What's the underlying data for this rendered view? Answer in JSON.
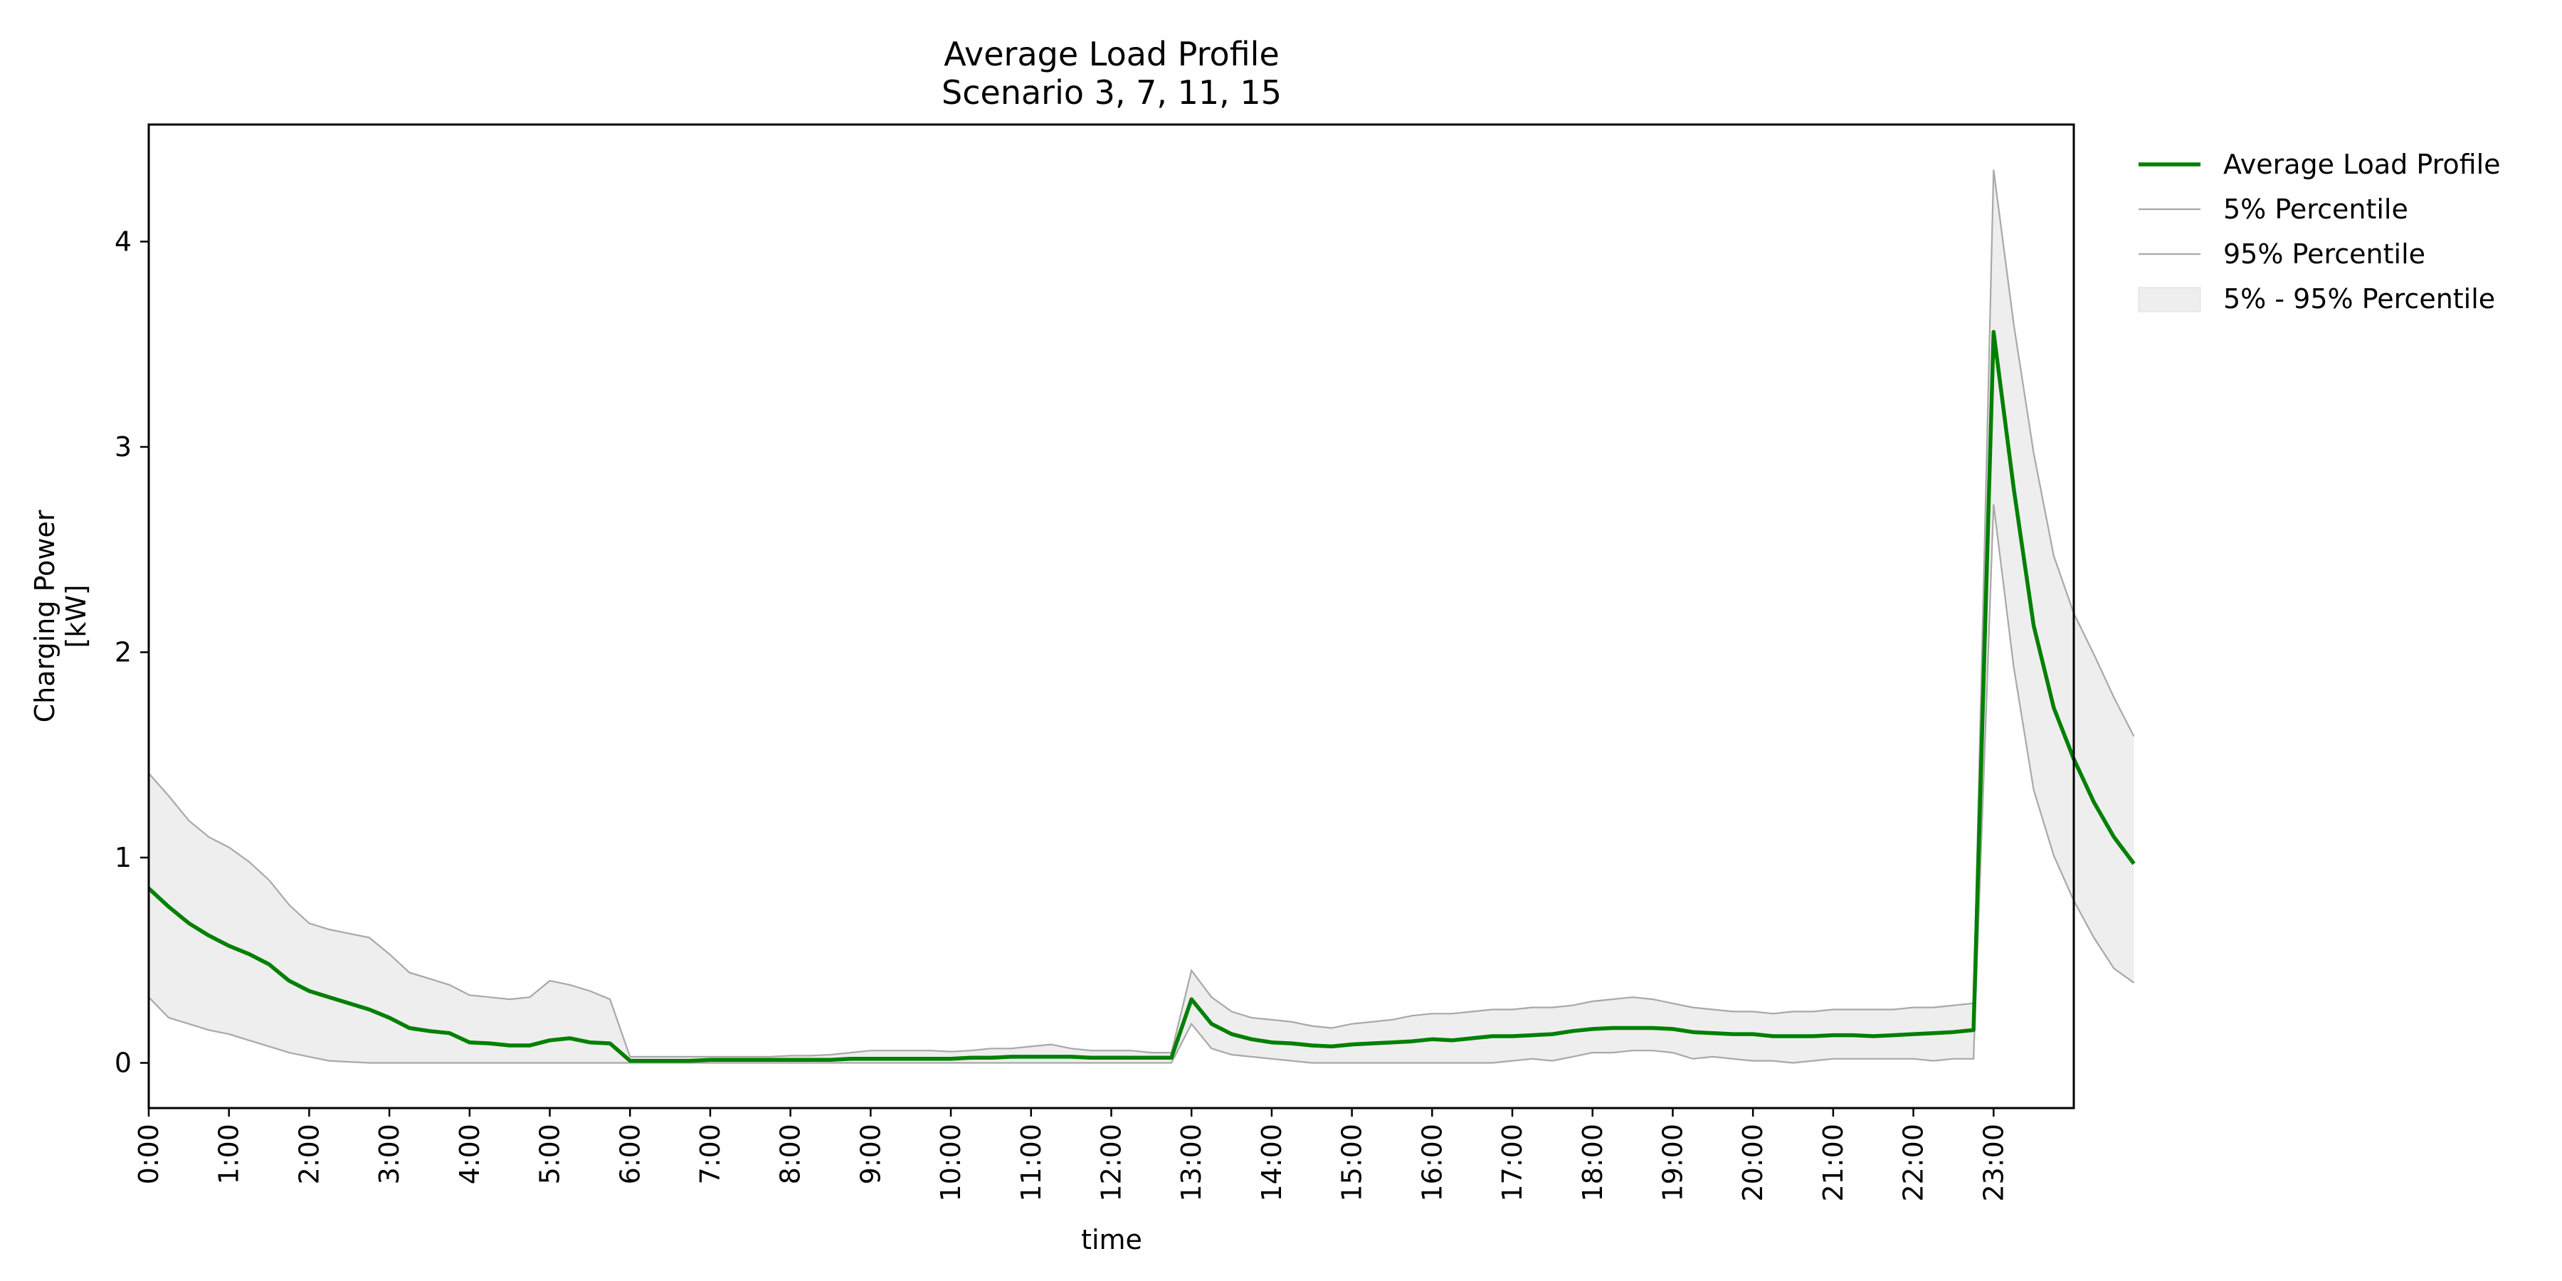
{
  "chart_data": {
    "type": "line",
    "title": "Average Load Profile",
    "subtitle": "Scenario 3, 7, 11, 15",
    "xlabel": "time",
    "ylabel": "Charging Power",
    "ylabel_unit": "[kW]",
    "x_step_hours": 0.25,
    "x_ticks": [
      "0:00",
      "1:00",
      "2:00",
      "3:00",
      "4:00",
      "5:00",
      "6:00",
      "7:00",
      "8:00",
      "9:00",
      "10:00",
      "11:00",
      "12:00",
      "13:00",
      "14:00",
      "15:00",
      "16:00",
      "17:00",
      "18:00",
      "19:00",
      "20:00",
      "21:00",
      "22:00",
      "23:00"
    ],
    "y_ticks": [
      0,
      1,
      2,
      3,
      4
    ],
    "xlim": [
      0,
      24
    ],
    "ylim": [
      -0.22,
      4.57
    ],
    "grid": false,
    "legend_placement": "outside top-right",
    "colors": {
      "average": "#008000",
      "percentile": "#a8a8a8",
      "band": "#eeeeee"
    },
    "legend": [
      {
        "label": "Average Load Profile",
        "kind": "line-average"
      },
      {
        "label": "5% Percentile",
        "kind": "line-percentile"
      },
      {
        "label": "95% Percentile",
        "kind": "line-percentile"
      },
      {
        "label": "5% - 95% Percentile",
        "kind": "band"
      }
    ],
    "series": [
      {
        "name": "Average Load Profile",
        "values": [
          0.85,
          0.76,
          0.68,
          0.62,
          0.57,
          0.53,
          0.48,
          0.4,
          0.35,
          0.32,
          0.29,
          0.26,
          0.22,
          0.17,
          0.155,
          0.145,
          0.1,
          0.095,
          0.085,
          0.085,
          0.11,
          0.12,
          0.1,
          0.095,
          0.01,
          0.01,
          0.01,
          0.01,
          0.015,
          0.015,
          0.015,
          0.015,
          0.015,
          0.015,
          0.015,
          0.02,
          0.02,
          0.02,
          0.02,
          0.02,
          0.02,
          0.025,
          0.025,
          0.03,
          0.03,
          0.03,
          0.03,
          0.025,
          0.025,
          0.025,
          0.025,
          0.025,
          0.31,
          0.19,
          0.14,
          0.115,
          0.1,
          0.095,
          0.085,
          0.08,
          0.09,
          0.095,
          0.1,
          0.105,
          0.115,
          0.11,
          0.12,
          0.13,
          0.13,
          0.135,
          0.14,
          0.155,
          0.165,
          0.17,
          0.17,
          0.17,
          0.165,
          0.15,
          0.145,
          0.14,
          0.14,
          0.13,
          0.13,
          0.13,
          0.135,
          0.135,
          0.13,
          0.135,
          0.14,
          0.145,
          0.15,
          0.16,
          3.56,
          2.8,
          2.13,
          1.73,
          1.48,
          1.27,
          1.1,
          0.97
        ]
      },
      {
        "name": "5% Percentile",
        "values": [
          0.32,
          0.22,
          0.19,
          0.16,
          0.14,
          0.11,
          0.08,
          0.05,
          0.03,
          0.01,
          0.005,
          0.0,
          0.0,
          0.0,
          0.0,
          0.0,
          0.0,
          0.0,
          0.0,
          0.0,
          0.0,
          0.0,
          0.0,
          0.0,
          0.0,
          0.0,
          0.0,
          0.0,
          0.0,
          0.0,
          0.0,
          0.0,
          0.0,
          0.0,
          0.0,
          0.0,
          0.0,
          0.0,
          0.0,
          0.0,
          0.0,
          0.0,
          0.0,
          0.0,
          0.0,
          0.0,
          0.0,
          0.0,
          0.0,
          0.0,
          0.0,
          0.0,
          0.19,
          0.07,
          0.04,
          0.03,
          0.02,
          0.01,
          0.0,
          0.0,
          0.0,
          0.0,
          0.0,
          0.0,
          0.0,
          0.0,
          0.0,
          0.0,
          0.01,
          0.02,
          0.01,
          0.03,
          0.05,
          0.05,
          0.06,
          0.06,
          0.05,
          0.02,
          0.03,
          0.02,
          0.01,
          0.01,
          0.0,
          0.01,
          0.02,
          0.02,
          0.02,
          0.02,
          0.02,
          0.01,
          0.02,
          0.02,
          2.72,
          1.93,
          1.33,
          1.01,
          0.79,
          0.61,
          0.46,
          0.39
        ]
      },
      {
        "name": "95% Percentile",
        "values": [
          1.41,
          1.3,
          1.18,
          1.1,
          1.05,
          0.98,
          0.89,
          0.77,
          0.68,
          0.65,
          0.63,
          0.61,
          0.53,
          0.44,
          0.41,
          0.38,
          0.33,
          0.32,
          0.31,
          0.32,
          0.4,
          0.38,
          0.35,
          0.31,
          0.03,
          0.03,
          0.03,
          0.03,
          0.03,
          0.03,
          0.03,
          0.03,
          0.035,
          0.035,
          0.04,
          0.05,
          0.06,
          0.06,
          0.06,
          0.06,
          0.055,
          0.06,
          0.07,
          0.07,
          0.08,
          0.09,
          0.07,
          0.06,
          0.06,
          0.06,
          0.05,
          0.05,
          0.45,
          0.32,
          0.25,
          0.22,
          0.21,
          0.2,
          0.18,
          0.17,
          0.19,
          0.2,
          0.21,
          0.23,
          0.24,
          0.24,
          0.25,
          0.26,
          0.26,
          0.27,
          0.27,
          0.28,
          0.3,
          0.31,
          0.32,
          0.31,
          0.29,
          0.27,
          0.26,
          0.25,
          0.25,
          0.24,
          0.25,
          0.25,
          0.26,
          0.26,
          0.26,
          0.26,
          0.27,
          0.27,
          0.28,
          0.29,
          4.35,
          3.6,
          2.97,
          2.47,
          2.19,
          1.99,
          1.78,
          1.59
        ]
      }
    ]
  }
}
